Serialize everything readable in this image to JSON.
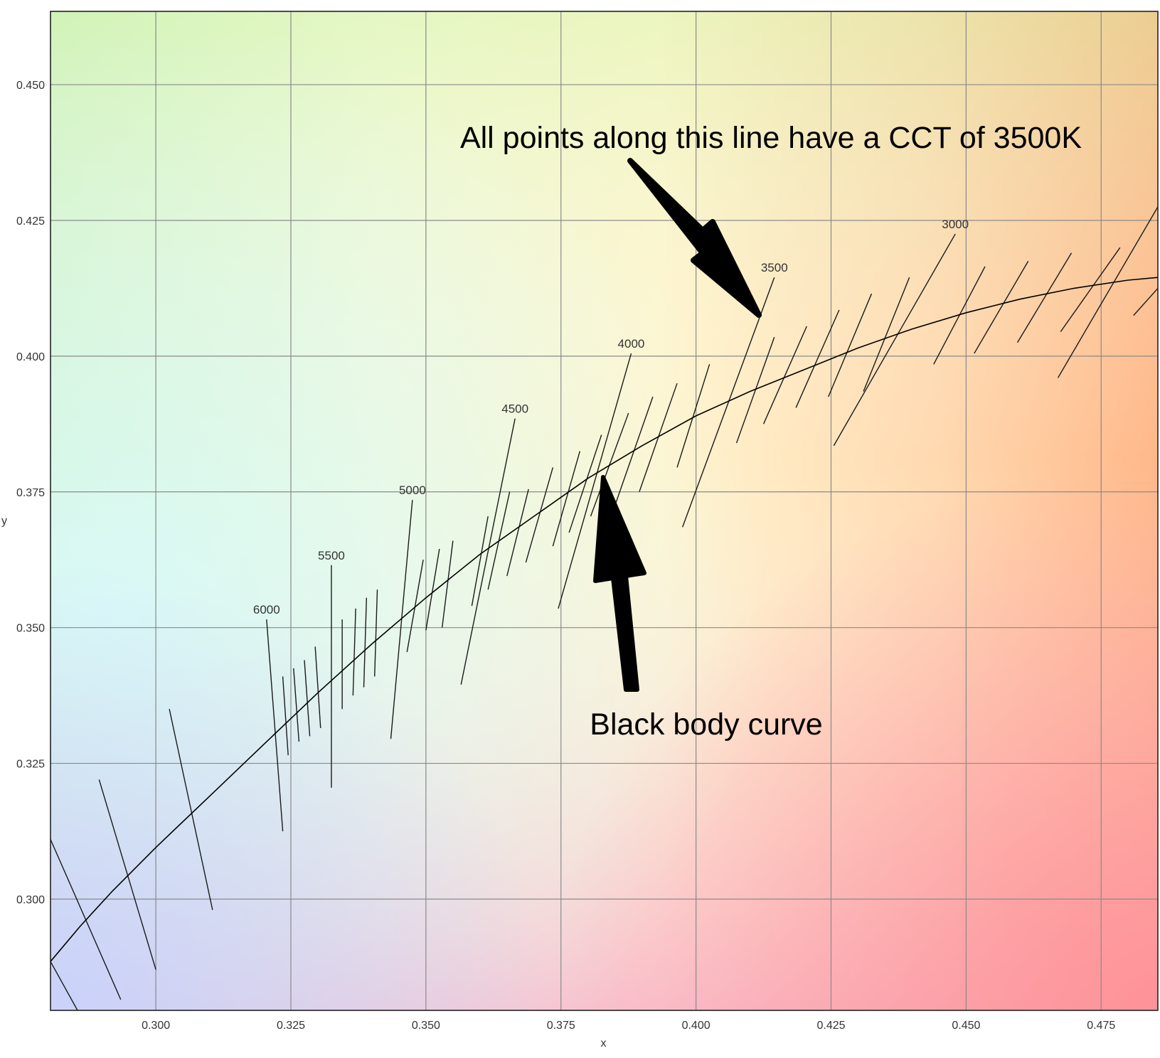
{
  "chart_data": {
    "type": "line",
    "title": "",
    "xlabel": "x",
    "ylabel": "y",
    "xlim": [
      0.2805,
      0.4855
    ],
    "ylim": [
      0.2795,
      0.4635
    ],
    "x_ticks": [
      0.3,
      0.325,
      0.35,
      0.375,
      0.4,
      0.425,
      0.45,
      0.475
    ],
    "y_ticks": [
      0.3,
      0.325,
      0.35,
      0.375,
      0.4,
      0.425,
      0.45
    ],
    "x_tick_labels": [
      "0.300",
      "0.325",
      "0.350",
      "0.375",
      "0.400",
      "0.425",
      "0.450",
      "0.475"
    ],
    "y_tick_labels": [
      "0.300",
      "0.325",
      "0.350",
      "0.375",
      "0.400",
      "0.425",
      "0.450"
    ],
    "grid": true,
    "background": "CIE 1931 chromaticity color field",
    "series": [
      {
        "type": "line",
        "color": "#000000",
        "points": [
          [
            0.2805,
            0.2885
          ],
          [
            0.286,
            0.295
          ],
          [
            0.292,
            0.3015
          ],
          [
            0.3,
            0.3095
          ],
          [
            0.31,
            0.319
          ],
          [
            0.32,
            0.3285
          ],
          [
            0.33,
            0.338
          ],
          [
            0.34,
            0.347
          ],
          [
            0.35,
            0.3555
          ],
          [
            0.36,
            0.3635
          ],
          [
            0.37,
            0.3705
          ],
          [
            0.38,
            0.3775
          ],
          [
            0.39,
            0.3835
          ],
          [
            0.4,
            0.389
          ],
          [
            0.41,
            0.3935
          ],
          [
            0.42,
            0.3975
          ],
          [
            0.43,
            0.4015
          ],
          [
            0.44,
            0.405
          ],
          [
            0.45,
            0.408
          ],
          [
            0.46,
            0.4105
          ],
          [
            0.47,
            0.4125
          ],
          [
            0.48,
            0.414
          ],
          [
            0.4855,
            0.4145
          ]
        ]
      }
    ],
    "isotherms": [
      {
        "label": "",
        "x": [
          0.2805,
          0.2935
        ],
        "y": [
          0.311,
          0.2815
        ]
      },
      {
        "label": "",
        "x": [
          0.2805,
          0.2855
        ],
        "y": [
          0.2885,
          0.2795
        ]
      },
      {
        "label": "",
        "x": [
          0.2895,
          0.3
        ],
        "y": [
          0.322,
          0.287
        ]
      },
      {
        "label": "",
        "x": [
          0.3025,
          0.3105
        ],
        "y": [
          0.335,
          0.298
        ]
      },
      {
        "label": "6000",
        "x": [
          0.3205,
          0.3235
        ],
        "y": [
          0.3515,
          0.3125
        ]
      },
      {
        "label": "",
        "x": [
          0.3235,
          0.3245
        ],
        "y": [
          0.341,
          0.3265
        ]
      },
      {
        "label": "",
        "x": [
          0.3255,
          0.3265
        ],
        "y": [
          0.3425,
          0.329
        ]
      },
      {
        "label": "",
        "x": [
          0.3275,
          0.3285
        ],
        "y": [
          0.344,
          0.33
        ]
      },
      {
        "label": "",
        "x": [
          0.3295,
          0.3305
        ],
        "y": [
          0.3465,
          0.3315
        ]
      },
      {
        "label": "5500",
        "x": [
          0.3325,
          0.3325
        ],
        "y": [
          0.3615,
          0.3205
        ]
      },
      {
        "label": "",
        "x": [
          0.3345,
          0.3345
        ],
        "y": [
          0.3515,
          0.335
        ]
      },
      {
        "label": "",
        "x": [
          0.337,
          0.3365
        ],
        "y": [
          0.3535,
          0.3375
        ]
      },
      {
        "label": "",
        "x": [
          0.339,
          0.3385
        ],
        "y": [
          0.3555,
          0.339
        ]
      },
      {
        "label": "",
        "x": [
          0.341,
          0.3405
        ],
        "y": [
          0.357,
          0.341
        ]
      },
      {
        "label": "5000",
        "x": [
          0.3475,
          0.3435
        ],
        "y": [
          0.3735,
          0.3295
        ]
      },
      {
        "label": "",
        "x": [
          0.3495,
          0.3465
        ],
        "y": [
          0.3625,
          0.3455
        ]
      },
      {
        "label": "",
        "x": [
          0.3525,
          0.35
        ],
        "y": [
          0.3645,
          0.3495
        ]
      },
      {
        "label": "",
        "x": [
          0.355,
          0.353
        ],
        "y": [
          0.366,
          0.35
        ]
      },
      {
        "label": "4500",
        "x": [
          0.3665,
          0.3565
        ],
        "y": [
          0.3885,
          0.3395
        ]
      },
      {
        "label": "",
        "x": [
          0.3615,
          0.3585
        ],
        "y": [
          0.3705,
          0.354
        ]
      },
      {
        "label": "",
        "x": [
          0.3655,
          0.3615
        ],
        "y": [
          0.375,
          0.357
        ]
      },
      {
        "label": "",
        "x": [
          0.369,
          0.365
        ],
        "y": [
          0.3755,
          0.3595
        ]
      },
      {
        "label": "",
        "x": [
          0.3735,
          0.3685
        ],
        "y": [
          0.3795,
          0.362
        ]
      },
      {
        "label": "",
        "x": [
          0.3785,
          0.3735
        ],
        "y": [
          0.3825,
          0.365
        ]
      },
      {
        "label": "4000",
        "x": [
          0.388,
          0.3745
        ],
        "y": [
          0.4005,
          0.3535
        ]
      },
      {
        "label": "",
        "x": [
          0.3825,
          0.3765
        ],
        "y": [
          0.3855,
          0.3675
        ]
      },
      {
        "label": "",
        "x": [
          0.3875,
          0.3805
        ],
        "y": [
          0.3895,
          0.3705
        ]
      },
      {
        "label": "",
        "x": [
          0.392,
          0.385
        ],
        "y": [
          0.3925,
          0.3725
        ]
      },
      {
        "label": "",
        "x": [
          0.3965,
          0.3895
        ],
        "y": [
          0.395,
          0.375
        ]
      },
      {
        "label": "",
        "x": [
          0.4025,
          0.3965
        ],
        "y": [
          0.3985,
          0.3795
        ]
      },
      {
        "label": "3500",
        "x": [
          0.4145,
          0.3975
        ],
        "y": [
          0.4145,
          0.3685
        ]
      },
      {
        "label": "",
        "x": [
          0.4145,
          0.4075
        ],
        "y": [
          0.4035,
          0.384
        ]
      },
      {
        "label": "",
        "x": [
          0.4205,
          0.4125
        ],
        "y": [
          0.4055,
          0.3875
        ]
      },
      {
        "label": "",
        "x": [
          0.4265,
          0.4185
        ],
        "y": [
          0.4085,
          0.3905
        ]
      },
      {
        "label": "",
        "x": [
          0.4325,
          0.4245
        ],
        "y": [
          0.4115,
          0.3925
        ]
      },
      {
        "label": "",
        "x": [
          0.4395,
          0.431
        ],
        "y": [
          0.4145,
          0.3935
        ]
      },
      {
        "label": "3000",
        "x": [
          0.448,
          0.4255
        ],
        "y": [
          0.4225,
          0.3835
        ]
      },
      {
        "label": "",
        "x": [
          0.4535,
          0.444
        ],
        "y": [
          0.4165,
          0.3985
        ]
      },
      {
        "label": "",
        "x": [
          0.4615,
          0.4515
        ],
        "y": [
          0.4175,
          0.4005
        ]
      },
      {
        "label": "",
        "x": [
          0.4695,
          0.4595
        ],
        "y": [
          0.419,
          0.4025
        ]
      },
      {
        "label": "",
        "x": [
          0.4785,
          0.4675
        ],
        "y": [
          0.42,
          0.4045
        ]
      },
      {
        "label": "",
        "x": [
          0.4855,
          0.467
        ],
        "y": [
          0.4275,
          0.396
        ]
      },
      {
        "label": "",
        "x": [
          0.4855,
          0.481
        ],
        "y": [
          0.4125,
          0.4075
        ]
      }
    ],
    "annotations": [
      {
        "text": "All points along this line have a CCT of 3500K",
        "target": "3500 isotherm"
      },
      {
        "text": "Black body curve",
        "target": "black body curve"
      }
    ]
  }
}
